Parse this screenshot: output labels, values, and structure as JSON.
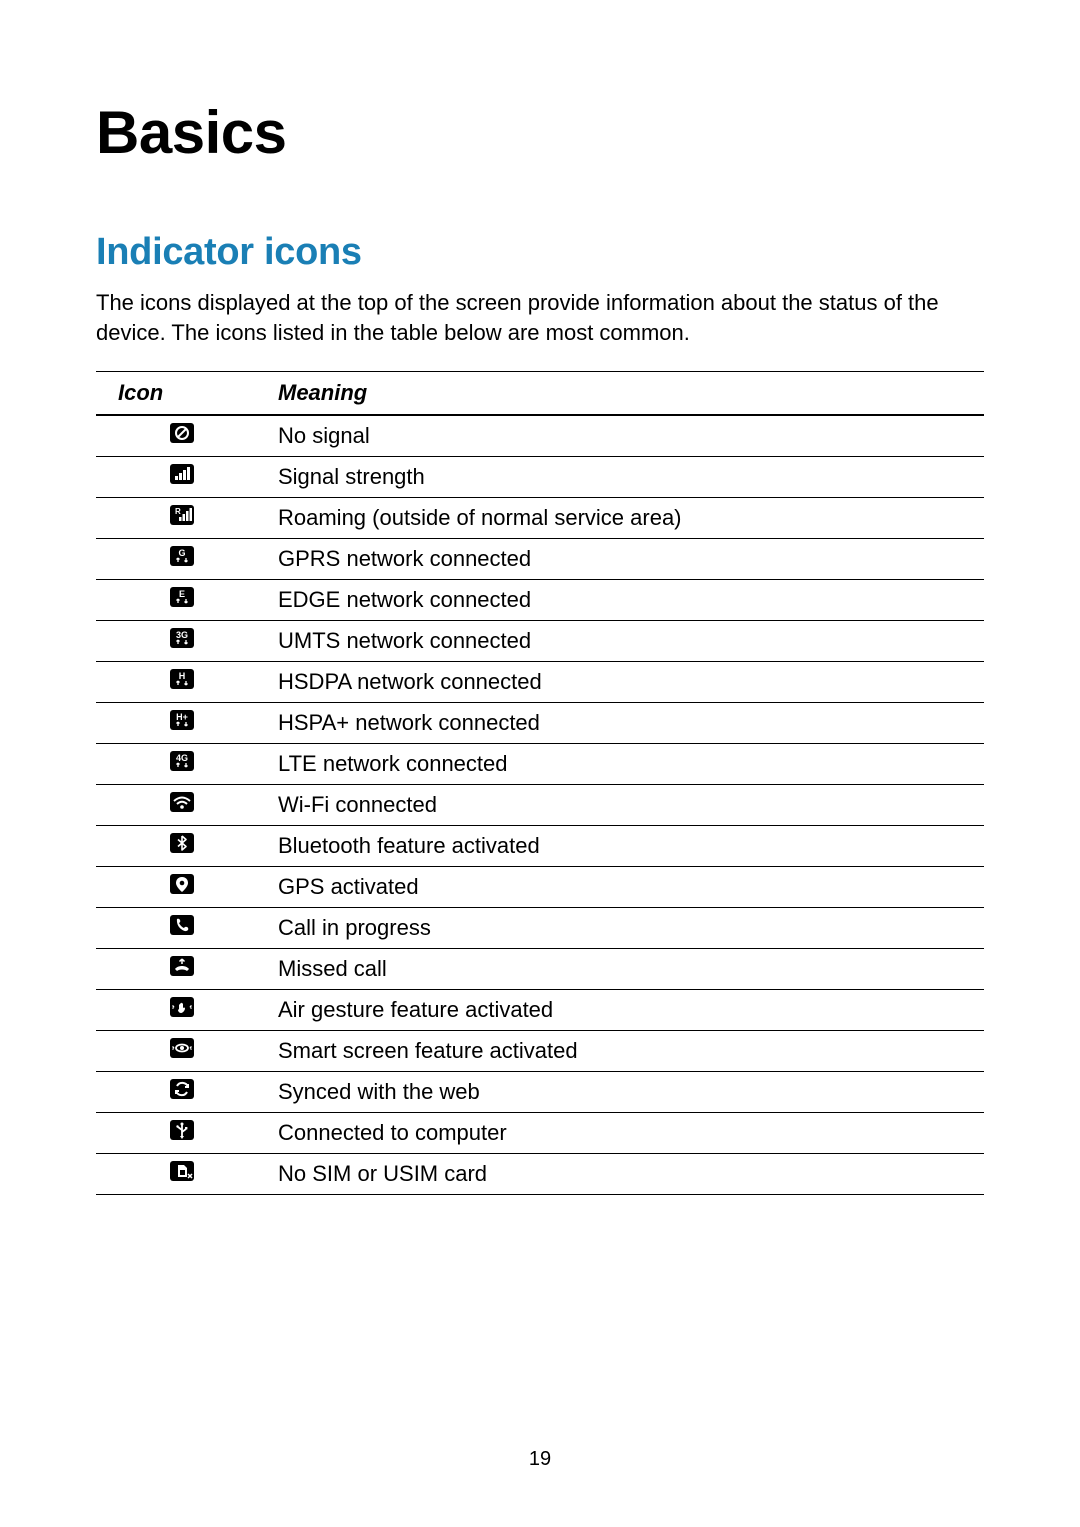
{
  "page": {
    "title": "Basics",
    "section_title": "Indicator icons",
    "intro": "The icons displayed at the top of the screen provide information about the status of the device. The icons listed in the table below are most common.",
    "page_number": "19",
    "table": {
      "columns": {
        "icon": "Icon",
        "meaning": "Meaning"
      },
      "rows": [
        {
          "icon": "no-signal",
          "meaning": "No signal"
        },
        {
          "icon": "signal-strength",
          "meaning": "Signal strength"
        },
        {
          "icon": "roaming",
          "meaning": "Roaming (outside of normal service area)"
        },
        {
          "icon": "gprs",
          "label": "G",
          "meaning": "GPRS network connected"
        },
        {
          "icon": "edge",
          "label": "E",
          "meaning": "EDGE network connected"
        },
        {
          "icon": "umts",
          "label": "3G",
          "meaning": "UMTS network connected"
        },
        {
          "icon": "hsdpa",
          "label": "H",
          "meaning": "HSDPA network connected"
        },
        {
          "icon": "hspa-plus",
          "label": "H+",
          "meaning": "HSPA+ network connected"
        },
        {
          "icon": "lte",
          "label": "4G",
          "meaning": "LTE network connected"
        },
        {
          "icon": "wifi",
          "meaning": "Wi-Fi connected"
        },
        {
          "icon": "bluetooth",
          "meaning": "Bluetooth feature activated"
        },
        {
          "icon": "gps",
          "meaning": "GPS activated"
        },
        {
          "icon": "call",
          "meaning": "Call in progress"
        },
        {
          "icon": "missed-call",
          "meaning": "Missed call"
        },
        {
          "icon": "air-gesture",
          "meaning": "Air gesture feature activated"
        },
        {
          "icon": "smart-screen",
          "meaning": "Smart screen feature activated"
        },
        {
          "icon": "sync",
          "meaning": "Synced with the web"
        },
        {
          "icon": "usb",
          "meaning": "Connected to computer"
        },
        {
          "icon": "no-sim",
          "meaning": "No SIM or USIM card"
        }
      ]
    },
    "colors": {
      "accent": "#1a7fb5",
      "text": "#000000",
      "background": "#ffffff",
      "icon_bg": "#000000",
      "icon_fg": "#ffffff"
    }
  }
}
